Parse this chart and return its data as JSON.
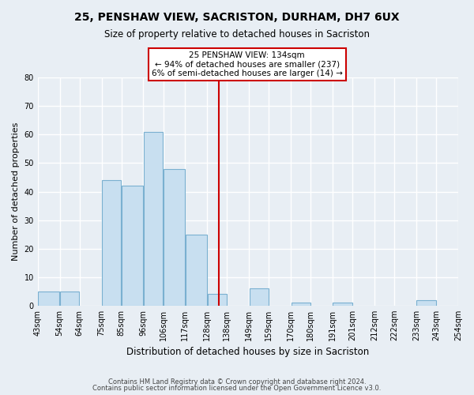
{
  "title": "25, PENSHAW VIEW, SACRISTON, DURHAM, DH7 6UX",
  "subtitle": "Size of property relative to detached houses in Sacriston",
  "xlabel": "Distribution of detached houses by size in Sacriston",
  "ylabel": "Number of detached properties",
  "bar_color": "#c8dff0",
  "bar_edge_color": "#7ab0d0",
  "bins": [
    43,
    54,
    64,
    75,
    85,
    96,
    106,
    117,
    128,
    138,
    149,
    159,
    170,
    180,
    191,
    201,
    212,
    222,
    233,
    243,
    254
  ],
  "bin_labels": [
    "43sqm",
    "54sqm",
    "64sqm",
    "75sqm",
    "85sqm",
    "96sqm",
    "106sqm",
    "117sqm",
    "128sqm",
    "138sqm",
    "149sqm",
    "159sqm",
    "170sqm",
    "180sqm",
    "191sqm",
    "201sqm",
    "212sqm",
    "222sqm",
    "233sqm",
    "243sqm",
    "254sqm"
  ],
  "counts": [
    5,
    5,
    0,
    44,
    42,
    61,
    48,
    25,
    4,
    0,
    6,
    0,
    1,
    0,
    1,
    0,
    0,
    0,
    2,
    0
  ],
  "property_line_x": 134,
  "property_line_color": "#cc0000",
  "annotation_title": "25 PENSHAW VIEW: 134sqm",
  "annotation_line1": "← 94% of detached houses are smaller (237)",
  "annotation_line2": "6% of semi-detached houses are larger (14) →",
  "annotation_box_color": "#ffffff",
  "annotation_box_edgecolor": "#cc0000",
  "ylim": [
    0,
    80
  ],
  "yticks": [
    0,
    10,
    20,
    30,
    40,
    50,
    60,
    70,
    80
  ],
  "footer1": "Contains HM Land Registry data © Crown copyright and database right 2024.",
  "footer2": "Contains public sector information licensed under the Open Government Licence v3.0.",
  "background_color": "#e8eef4",
  "plot_bg_color": "#e8eef4",
  "grid_color": "#ffffff"
}
